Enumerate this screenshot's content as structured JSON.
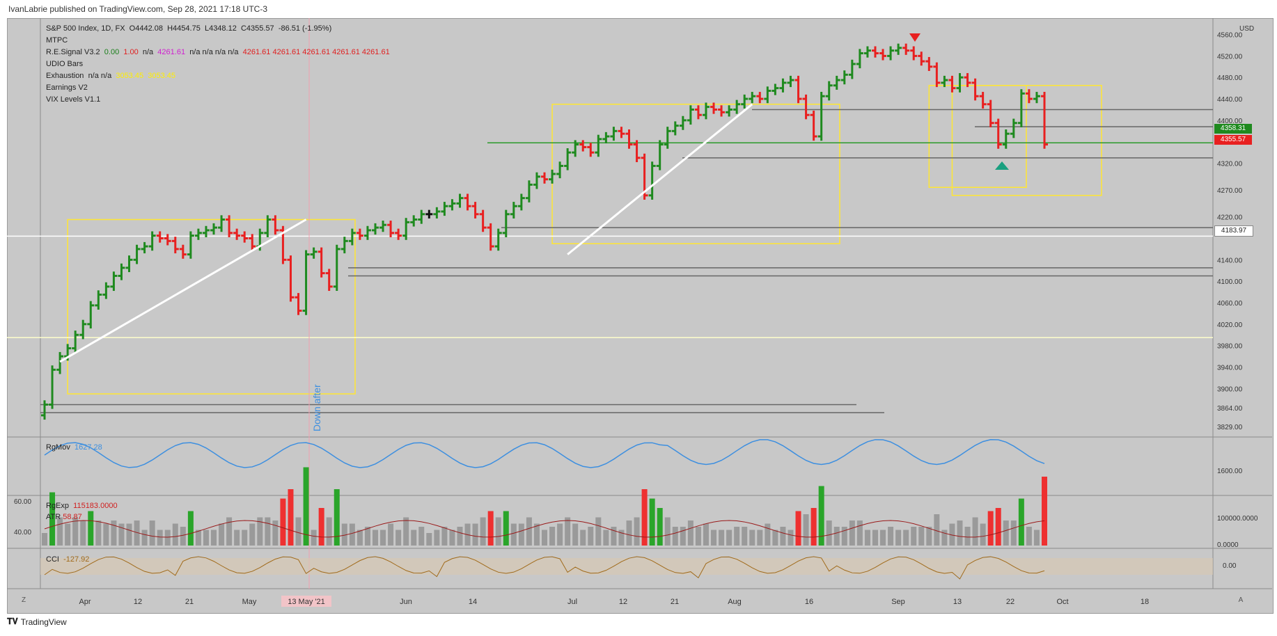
{
  "header": {
    "text": "IvanLabrie published on TradingView.com, Sep 28, 2021 17:18 UTC-3"
  },
  "legend": {
    "symbol": "S&P 500 Index, 1D, FX",
    "open": "O4442.08",
    "high": "H4454.75",
    "low": "L4348.12",
    "close": "C4355.57",
    "change": "-86.51 (-1.95%)",
    "mtpc": "MTPC",
    "resignal_name": "R.E.Signal V3.2",
    "resignal_v1": "0.00",
    "resignal_v2": "1.00",
    "resignal_na1": "n/a",
    "resignal_v3": "4261.61",
    "resignal_na_run": "n/a  n/a  n/a  n/a",
    "resignal_vals": "4261.61  4261.61  4261.61  4261.61  4261.61",
    "udio": "UDIO Bars",
    "exhaustion_name": "Exhaustion",
    "exhaustion_na": "n/a  n/a",
    "exhaustion_v1": "3053.45",
    "exhaustion_v2": "3053.45",
    "earnings": "Earnings V2",
    "vix": "VIX Levels V1.1"
  },
  "annotations": {
    "vertical_text": "Down after"
  },
  "price_tags": {
    "upper": "4358.31",
    "lower": "4355.57",
    "level": "4183.97"
  },
  "rgmov": {
    "name": "RgMov",
    "value": "1627.28"
  },
  "rgexp": {
    "name": "RgExp",
    "value": "115183.0000",
    "atr_name": "ATR",
    "atr_value": "58.87"
  },
  "cci": {
    "name": "CCI",
    "value": "-127.92"
  },
  "footer": {
    "brand": "TradingView"
  },
  "corners": {
    "left": "Z",
    "right": "A"
  },
  "colors": {
    "up": "#1f8a1f",
    "down": "#e82020",
    "neutral": "#111111",
    "background": "#c8c8c8",
    "box": "#ffe633",
    "rgmov": "#3d8fe0",
    "cci": "#a06a1a"
  },
  "chart_data": {
    "type": "ohlc",
    "title": "S&P 500 Index, 1D, FX",
    "price_axis": {
      "ticks": [
        4560,
        4520,
        4480,
        4440,
        4400,
        4360,
        4320,
        4270,
        4220,
        4183.97,
        4140,
        4100,
        4060,
        4020,
        3980,
        3940,
        3900,
        3864,
        3829
      ],
      "unit": "USD"
    },
    "x_ticks": [
      "Apr",
      "12",
      "21",
      "May",
      "13 May '21",
      "Jun",
      "14",
      "Jul",
      "12",
      "21",
      "Aug",
      "16",
      "Sep",
      "13",
      "22",
      "Oct",
      "18"
    ],
    "close_series": [
      3870,
      3935,
      3960,
      3975,
      4000,
      4020,
      4055,
      4075,
      4090,
      4110,
      4125,
      4140,
      4160,
      4165,
      4185,
      4180,
      4175,
      4160,
      4150,
      4185,
      4190,
      4195,
      4200,
      4215,
      4190,
      4185,
      4180,
      4165,
      4190,
      4215,
      4195,
      4140,
      4070,
      4045,
      4150,
      4155,
      4115,
      4090,
      4160,
      4175,
      4190,
      4185,
      4195,
      4200,
      4205,
      4190,
      4185,
      4210,
      4215,
      4225,
      4225,
      4230,
      4240,
      4245,
      4255,
      4240,
      4225,
      4200,
      4165,
      4190,
      4225,
      4240,
      4255,
      4280,
      4295,
      4290,
      4300,
      4315,
      4340,
      4355,
      4350,
      4340,
      4365,
      4370,
      4380,
      4375,
      4355,
      4330,
      4260,
      4315,
      4355,
      4380,
      4390,
      4400,
      4420,
      4410,
      4425,
      4420,
      4415,
      4420,
      4430,
      4440,
      4445,
      4440,
      4455,
      4460,
      4470,
      4475,
      4440,
      4410,
      4370,
      4445,
      4465,
      4475,
      4485,
      4505,
      4525,
      4530,
      4525,
      4520,
      4530,
      4535,
      4530,
      4520,
      4510,
      4500,
      4470,
      4475,
      4460,
      4480,
      4470,
      4445,
      4430,
      4395,
      4355,
      4375,
      4395,
      4450,
      4440,
      4445,
      4355
    ],
    "rgmov": {
      "label_value": 1627.28,
      "axis_ticks": [
        1600
      ]
    },
    "rgexp": {
      "label_value": 115183,
      "axis_ticks": [
        100000,
        0
      ]
    },
    "atr": {
      "label_value": 58.87,
      "axis_ticks": [
        60,
        40
      ]
    },
    "cci": {
      "label_value": -127.92,
      "axis_ticks": [
        0
      ]
    }
  }
}
